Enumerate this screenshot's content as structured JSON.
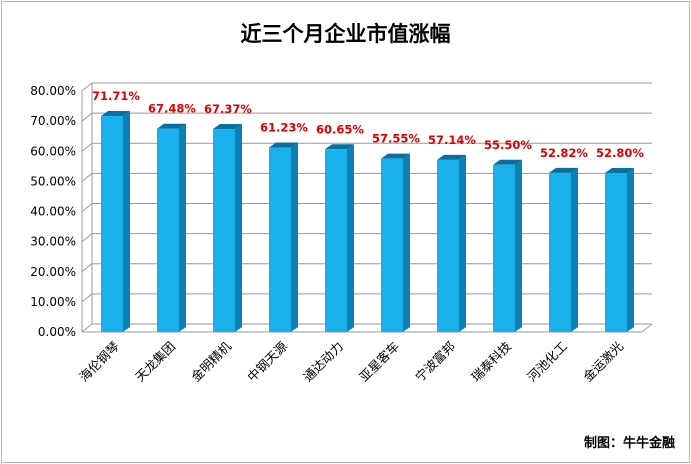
{
  "chart_data": {
    "type": "bar",
    "title": "近三个月企业市值涨幅",
    "categories": [
      "海伦钢琴",
      "天龙集团",
      "金明精机",
      "中钢天源",
      "通达动力",
      "亚星客车",
      "宁波富邦",
      "瑞泰科技",
      "河池化工",
      "金运激光"
    ],
    "values": [
      71.71,
      67.48,
      67.37,
      61.23,
      60.65,
      57.55,
      57.14,
      55.5,
      52.82,
      52.8
    ],
    "value_labels": [
      "71.71%",
      "67.48%",
      "67.37%",
      "61.23%",
      "60.65%",
      "57.55%",
      "57.14%",
      "55.50%",
      "52.82%",
      "52.80%"
    ],
    "y_ticks": [
      "0.00%",
      "10.00%",
      "20.00%",
      "30.00%",
      "40.00%",
      "50.00%",
      "60.00%",
      "70.00%",
      "80.00%"
    ],
    "ylim": [
      0,
      80
    ],
    "ylabel": "",
    "xlabel": "",
    "gridlines": true,
    "colors": {
      "bar_front": "#1ab0ee",
      "bar_side": "#0c7fb3",
      "bar_top": "#0a6f9f",
      "label": "#e00000",
      "grid": "#9a9a9a"
    }
  },
  "credit": "制图：牛牛金融"
}
